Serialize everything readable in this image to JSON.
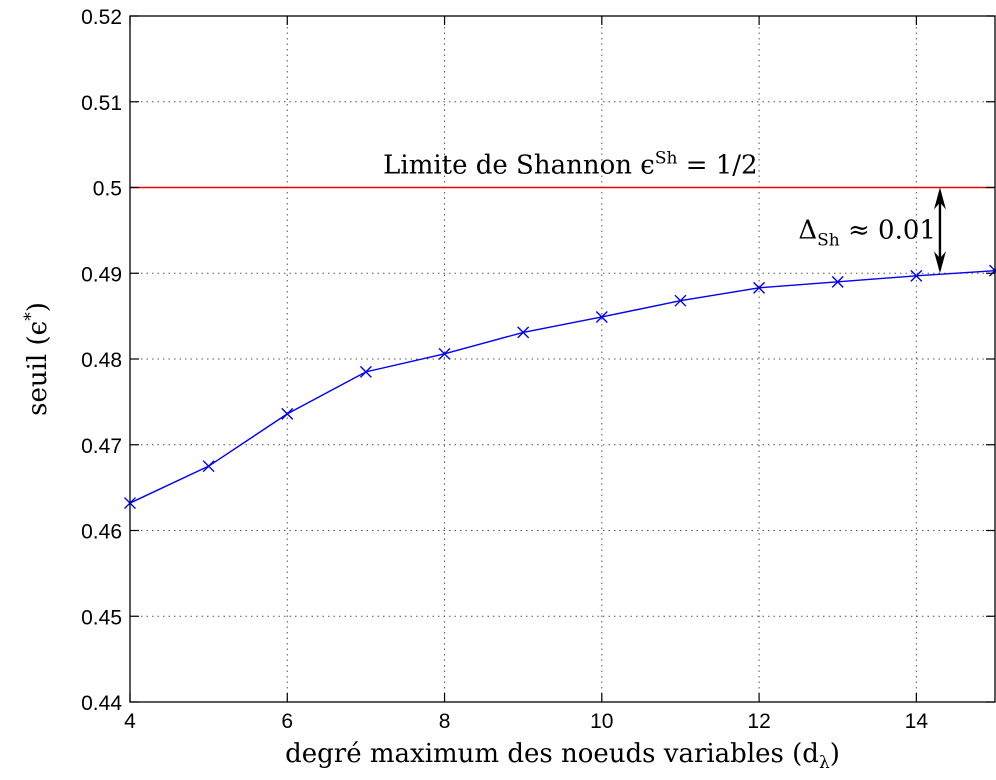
{
  "chart_data": {
    "type": "line",
    "title": "",
    "xlabel": "degré maximum des noeuds variables (d",
    "xlabel_sub": "λ",
    "xlabel_close": ")",
    "ylabel": "seuil (ϵ",
    "ylabel_sup": "*",
    "ylabel_close": ")",
    "xlim": [
      4,
      15
    ],
    "ylim": [
      0.44,
      0.52
    ],
    "xticks": [
      4,
      6,
      8,
      10,
      12,
      14
    ],
    "yticks": [
      0.44,
      0.45,
      0.46,
      0.47,
      0.48,
      0.49,
      0.5,
      0.51,
      0.52
    ],
    "xtick_labels": [
      "4",
      "6",
      "8",
      "10",
      "12",
      "14"
    ],
    "ytick_labels": [
      "0.44",
      "0.45",
      "0.46",
      "0.47",
      "0.48",
      "0.49",
      "0.5",
      "0.51",
      "0.52"
    ],
    "grid": true,
    "series": [
      {
        "color": "#0000ee",
        "marker": "x",
        "x": [
          4,
          5,
          6,
          7,
          8,
          9,
          10,
          11,
          12,
          13,
          14,
          15
        ],
        "y": [
          0.4632,
          0.4675,
          0.4736,
          0.4785,
          0.4806,
          0.4831,
          0.4849,
          0.4868,
          0.4883,
          0.489,
          0.4897,
          0.4903
        ]
      }
    ],
    "reference_line": {
      "y": 0.5,
      "color": "#ee0000",
      "label_main": "Limite de Shannon ϵ",
      "label_sup": "Sh",
      "label_rest": " = 1/2"
    },
    "annotation": {
      "x": 14.3,
      "y_from": 0.49,
      "y_to": 0.5,
      "label_main": "Δ",
      "label_sub": "Sh",
      "label_rest": " ≈ 0.01"
    }
  }
}
